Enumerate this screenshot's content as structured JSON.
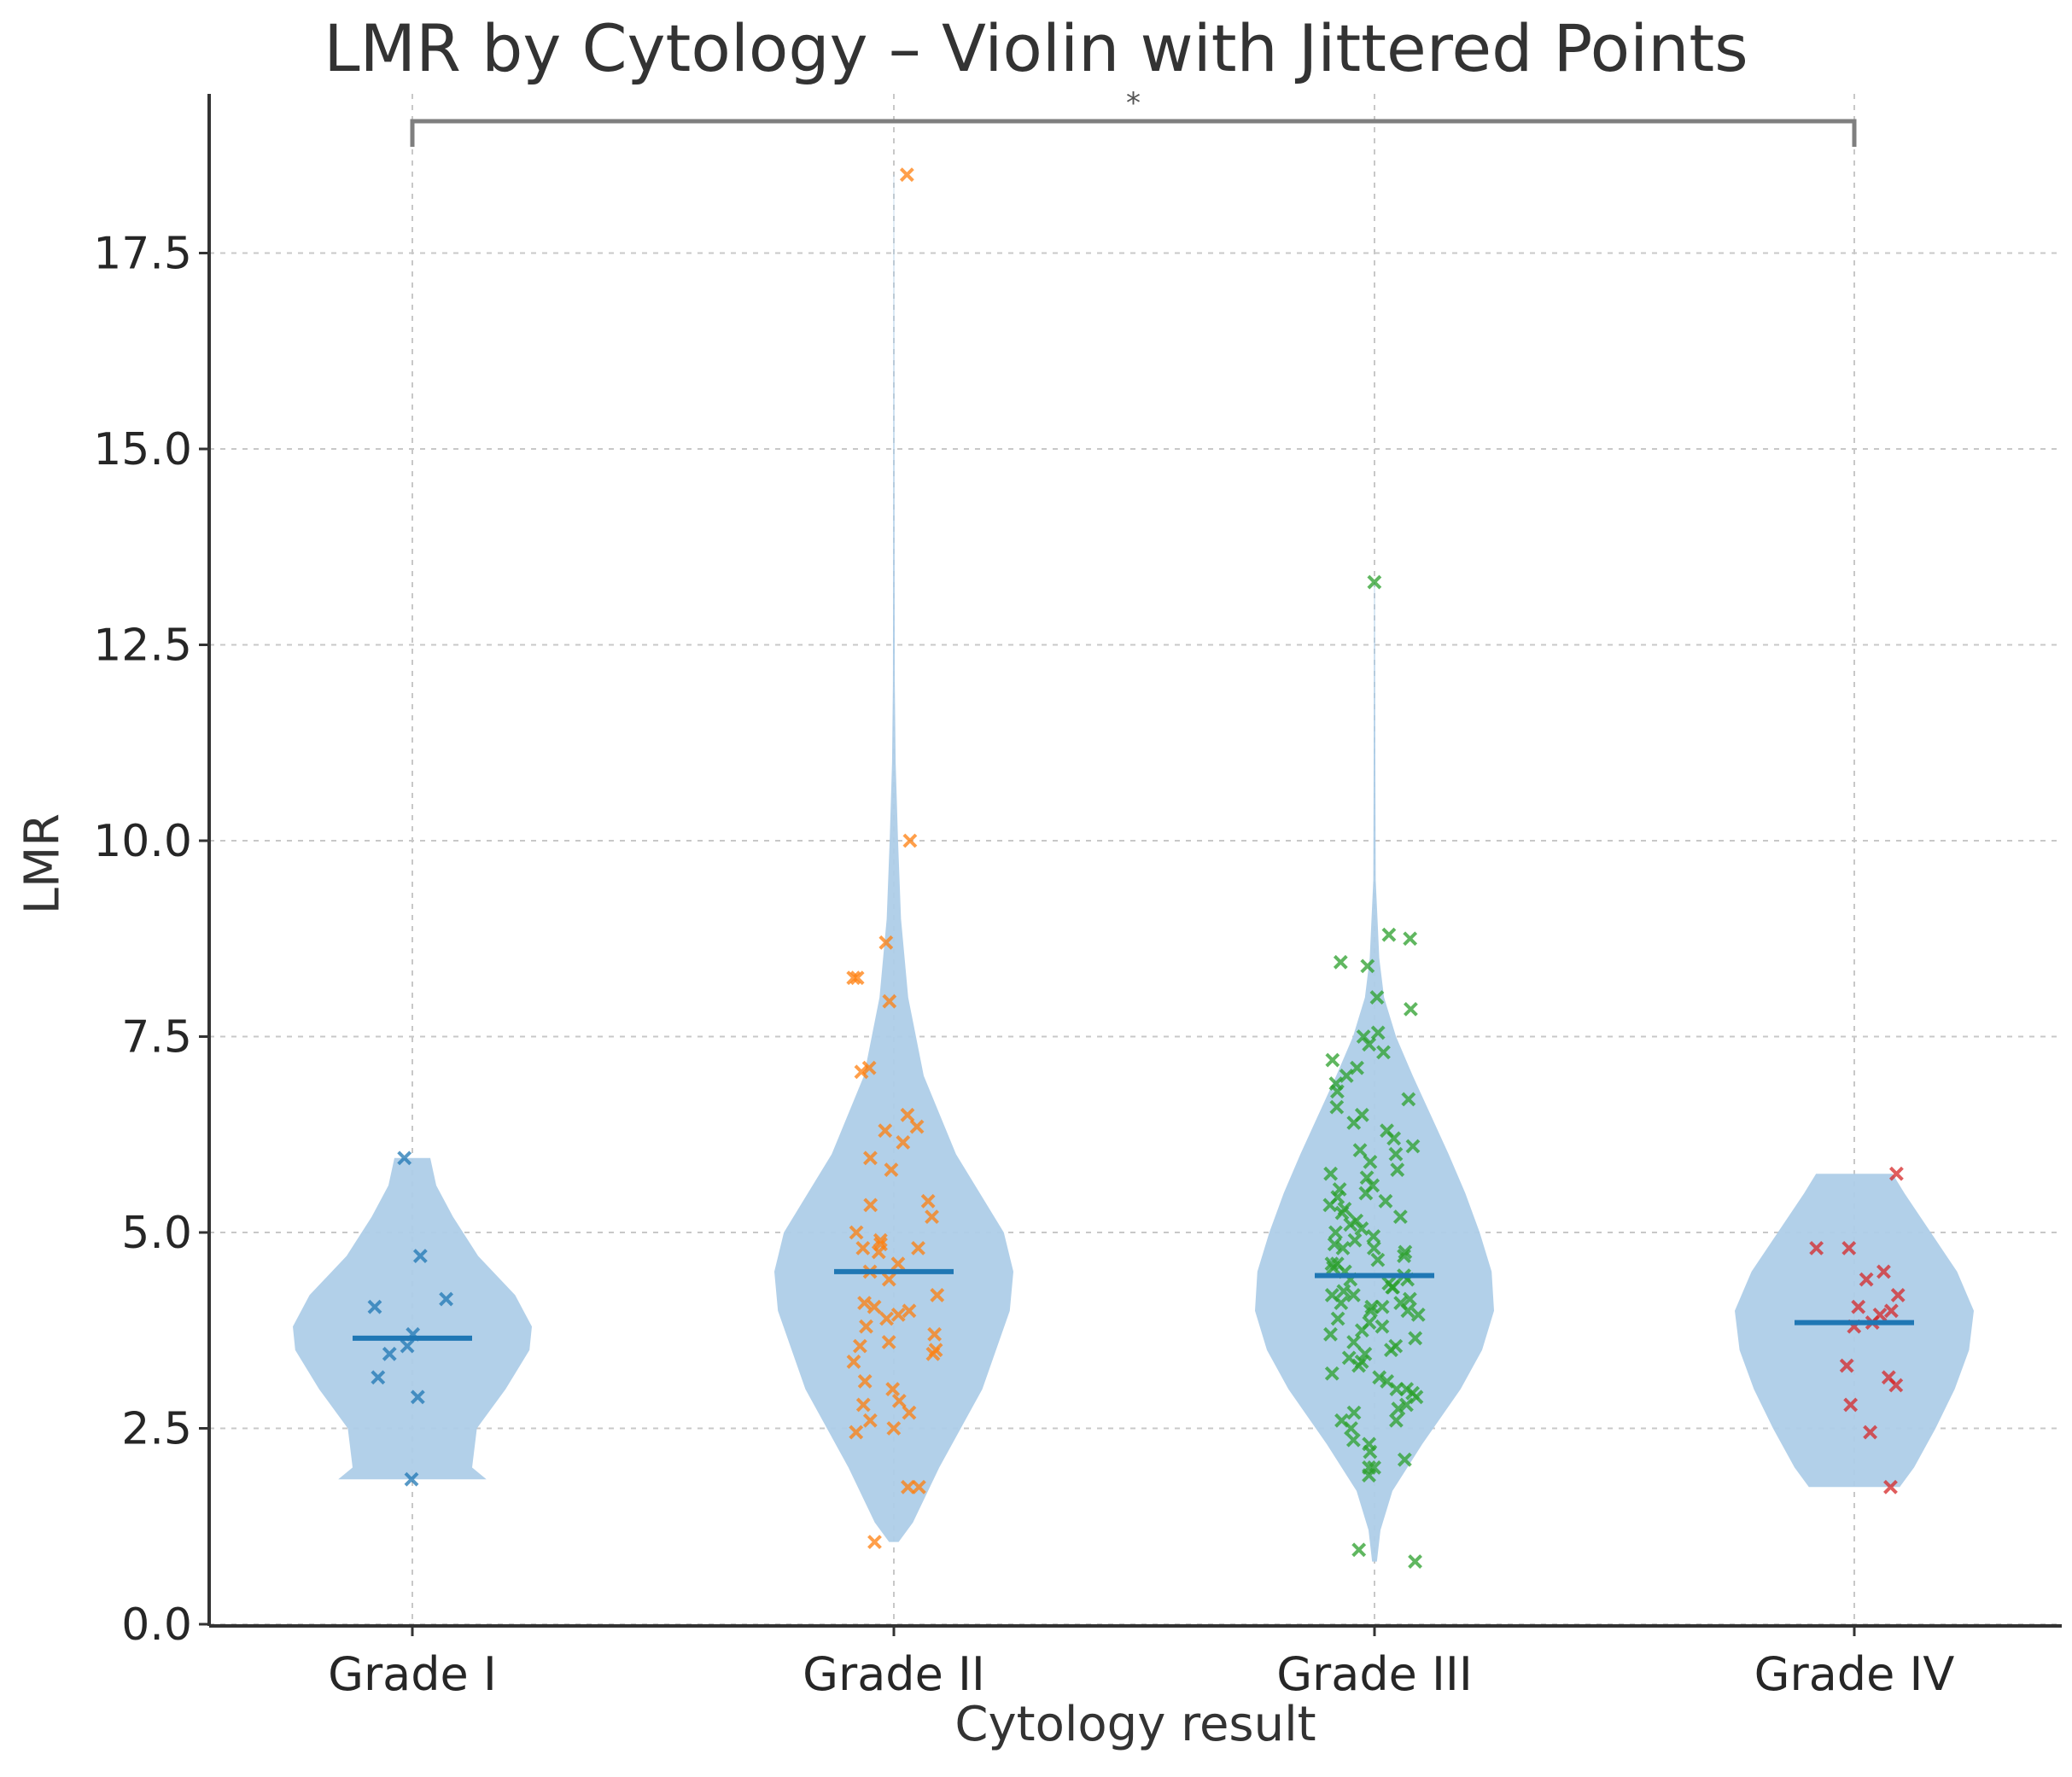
{
  "chart_data": {
    "type": "violin",
    "title": "LMR by Cytology – Violin with Jittered Points",
    "xlabel": "Cytology result",
    "ylabel": "LMR",
    "ylim": [
      0,
      19
    ],
    "yticks": [
      0.0,
      2.5,
      5.0,
      7.5,
      10.0,
      12.5,
      15.0,
      17.5
    ],
    "ytick_labels": [
      "0.0",
      "2.5",
      "5.0",
      "7.5",
      "10.0",
      "12.5",
      "15.0",
      "17.5"
    ],
    "categories": [
      "Grade I",
      "Grade II",
      "Grade III",
      "Grade IV"
    ],
    "grid": true,
    "significance": {
      "from": "Grade I",
      "to": "Grade IV",
      "y": 18.9,
      "label": "*"
    },
    "colors": {
      "violin": "#aecde8",
      "median": "#1f77b4",
      "grid": "#c8c8c8",
      "axis": "#333333",
      "bracket": "#7f7f7f"
    },
    "series": [
      {
        "name": "Grade I",
        "color": "#1f77b4",
        "median": 3.65,
        "min": 1.85,
        "max": 5.95,
        "kde": [
          [
            1.85,
            0.62
          ],
          [
            2.0,
            0.5
          ],
          [
            2.5,
            0.54
          ],
          [
            3.0,
            0.78
          ],
          [
            3.5,
            0.98
          ],
          [
            3.8,
            1.0
          ],
          [
            4.2,
            0.86
          ],
          [
            4.7,
            0.55
          ],
          [
            5.2,
            0.34
          ],
          [
            5.6,
            0.2
          ],
          [
            5.95,
            0.15
          ]
        ],
        "points": [
          1.85,
          2.9,
          3.15,
          3.45,
          3.55,
          3.7,
          4.05,
          4.15,
          4.7,
          5.95
        ]
      },
      {
        "name": "Grade II",
        "color": "#ff7f0e",
        "median": 4.5,
        "min": 1.05,
        "max": 18.5,
        "kde": [
          [
            1.05,
            0.04
          ],
          [
            1.3,
            0.16
          ],
          [
            2.0,
            0.38
          ],
          [
            3.0,
            0.74
          ],
          [
            4.0,
            0.97
          ],
          [
            4.5,
            1.0
          ],
          [
            5.0,
            0.92
          ],
          [
            6.0,
            0.52
          ],
          [
            7.0,
            0.25
          ],
          [
            8.0,
            0.12
          ],
          [
            9.0,
            0.06
          ],
          [
            10.0,
            0.035
          ],
          [
            11.0,
            0.015
          ],
          [
            12.0,
            0.008
          ],
          [
            14.0,
            0.006
          ],
          [
            18.5,
            0.002
          ]
        ],
        "points": [
          1.05,
          1.75,
          1.75,
          2.45,
          2.5,
          2.6,
          2.7,
          2.8,
          2.85,
          3.0,
          3.1,
          3.35,
          3.45,
          3.5,
          3.55,
          3.6,
          3.7,
          3.8,
          3.9,
          3.95,
          4.0,
          4.05,
          4.1,
          4.2,
          4.4,
          4.5,
          4.6,
          4.75,
          4.8,
          4.8,
          4.85,
          4.9,
          5.0,
          5.2,
          5.35,
          5.4,
          5.8,
          5.95,
          6.15,
          6.3,
          6.35,
          6.5,
          7.05,
          7.1,
          7.95,
          8.25,
          8.25,
          8.7,
          10.0,
          18.5
        ]
      },
      {
        "name": "Grade III",
        "color": "#2ca02c",
        "median": 4.45,
        "min": 0.8,
        "max": 13.3,
        "kde": [
          [
            0.8,
            0.02
          ],
          [
            1.2,
            0.05
          ],
          [
            1.7,
            0.15
          ],
          [
            2.3,
            0.4
          ],
          [
            3.0,
            0.72
          ],
          [
            3.5,
            0.9
          ],
          [
            4.0,
            1.0
          ],
          [
            4.5,
            0.98
          ],
          [
            5.0,
            0.88
          ],
          [
            5.5,
            0.76
          ],
          [
            6.0,
            0.62
          ],
          [
            6.5,
            0.47
          ],
          [
            7.0,
            0.32
          ],
          [
            7.5,
            0.18
          ],
          [
            8.0,
            0.08
          ],
          [
            8.5,
            0.04
          ],
          [
            9.0,
            0.025
          ],
          [
            9.5,
            0.01
          ],
          [
            13.3,
            0.003
          ]
        ],
        "points": [
          0.8,
          0.95,
          1.9,
          2.0,
          2.0,
          2.1,
          2.2,
          2.3,
          2.35,
          2.5,
          2.6,
          2.6,
          2.7,
          2.75,
          2.8,
          2.9,
          2.95,
          3.0,
          3.0,
          3.1,
          3.15,
          3.2,
          3.3,
          3.35,
          3.4,
          3.45,
          3.5,
          3.55,
          3.6,
          3.65,
          3.7,
          3.75,
          3.8,
          3.85,
          3.9,
          3.95,
          4.0,
          4.0,
          4.05,
          4.05,
          4.1,
          4.1,
          4.15,
          4.2,
          4.2,
          4.25,
          4.3,
          4.3,
          4.35,
          4.4,
          4.4,
          4.45,
          4.5,
          4.55,
          4.6,
          4.6,
          4.65,
          4.7,
          4.75,
          4.8,
          4.8,
          4.85,
          4.9,
          4.95,
          5.0,
          5.05,
          5.1,
          5.15,
          5.2,
          5.25,
          5.3,
          5.35,
          5.4,
          5.45,
          5.5,
          5.55,
          5.6,
          5.7,
          5.75,
          5.8,
          5.9,
          6.0,
          6.05,
          6.1,
          6.2,
          6.3,
          6.4,
          6.5,
          6.6,
          6.7,
          6.8,
          6.9,
          7.0,
          7.1,
          7.2,
          7.3,
          7.4,
          7.5,
          7.55,
          7.85,
          8.0,
          8.4,
          8.45,
          8.75,
          8.8,
          13.3
        ]
      },
      {
        "name": "Grade IV",
        "color": "#d62728",
        "median": 3.85,
        "min": 1.75,
        "max": 5.75,
        "kde": [
          [
            1.75,
            0.38
          ],
          [
            2.0,
            0.5
          ],
          [
            2.5,
            0.68
          ],
          [
            3.0,
            0.84
          ],
          [
            3.5,
            0.96
          ],
          [
            4.0,
            1.0
          ],
          [
            4.5,
            0.86
          ],
          [
            5.0,
            0.64
          ],
          [
            5.5,
            0.42
          ],
          [
            5.75,
            0.32
          ]
        ],
        "points": [
          1.75,
          2.45,
          2.8,
          3.05,
          3.15,
          3.3,
          3.8,
          3.85,
          3.95,
          4.0,
          4.05,
          4.2,
          4.4,
          4.5,
          4.8,
          4.8,
          5.75
        ]
      }
    ]
  }
}
